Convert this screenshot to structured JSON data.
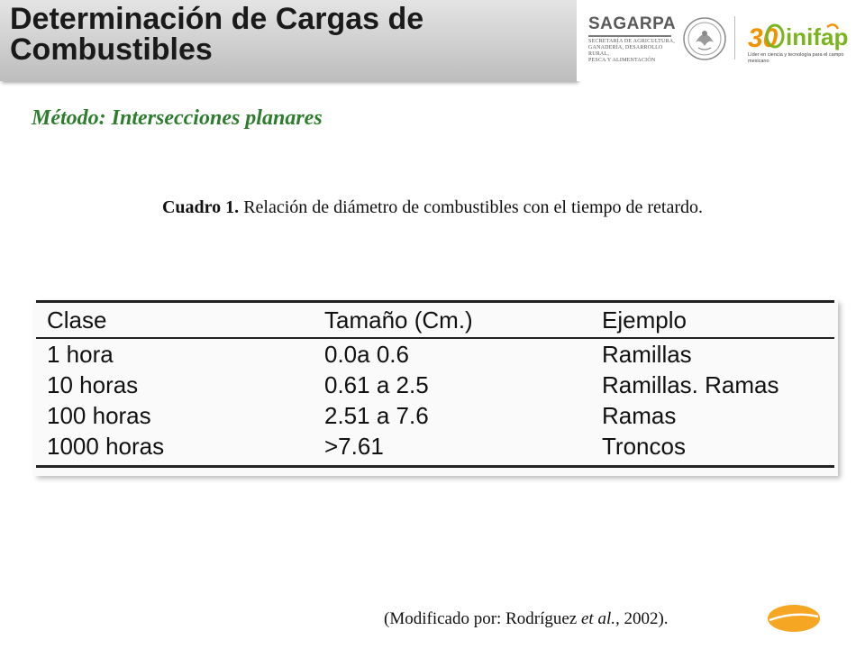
{
  "header": {
    "title_line1": "Determinación de Cargas de",
    "title_line2": "Combustibles",
    "logos": {
      "sagarpa_name": "SAGARPA",
      "sagarpa_sub_1": "SECRETARÍA DE AGRICULTURA,",
      "sagarpa_sub_2": "GANADERÍA, DESARROLLO RURAL,",
      "sagarpa_sub_3": "PESCA Y ALIMENTACIÓN",
      "inifap_name": "inifap",
      "inifap_anniv": "30",
      "inifap_tagline": "Líder en ciencia y tecnología para el campo mexicano"
    }
  },
  "subtitle": "Método: Intersecciones planares",
  "caption": {
    "label": "Cuadro 1.",
    "text": " Relación de diámetro de combustibles con el tiempo de retardo."
  },
  "table": {
    "headers": [
      "Clase",
      "Tamaño (Cm.)",
      "Ejemplo"
    ],
    "rows": [
      [
        "1 hora",
        "0.0a 0.6",
        "Ramillas"
      ],
      [
        "10 horas",
        "0.61 a 2.5",
        "Ramillas. Ramas"
      ],
      [
        "100 horas",
        "2.51 a 7.6",
        "Ramas"
      ],
      [
        "1000 horas",
        ">7.61",
        "Troncos"
      ]
    ]
  },
  "source": {
    "prefix": "(Modificado por: Rodríguez ",
    "italic": "et al.,",
    "suffix": " 2002)."
  },
  "colors": {
    "subtitle": "#2e7d2e",
    "badge": "#f5a623",
    "inifap_green": "#7ab51d",
    "inifap_orange": "#f39200"
  }
}
